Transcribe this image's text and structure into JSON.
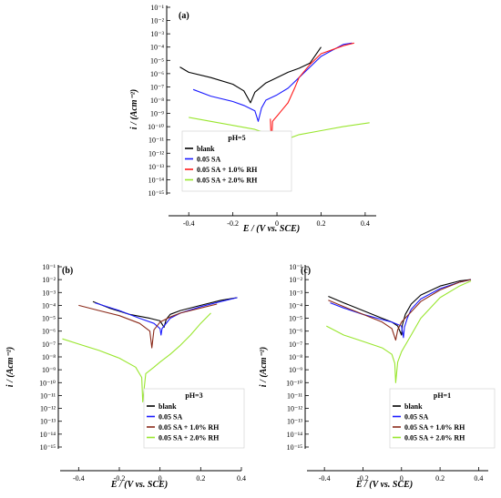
{
  "figure_colors": {
    "blank": "#000000",
    "sa": "#1a1aff",
    "rh1_a": "#ff1a1a",
    "rh1_bc": "#8b2a1a",
    "rh2": "#99e62e"
  },
  "chart_data": [
    {
      "id": "a",
      "type": "line",
      "panel_tag": "(a)",
      "xlabel": "E / (V vs. SCE)",
      "ylabel": "i / (Acm⁻²)",
      "xlim": [
        -0.5,
        0.45
      ],
      "ylim_log10": [
        -15,
        -1
      ],
      "x_ticks": [
        -0.4,
        -0.2,
        0,
        0.2,
        0.4
      ],
      "x_tick_labels": [
        "-0.4",
        "-0.2",
        "0",
        "0.2",
        "0.4"
      ],
      "y_ticks_log10": [
        -1,
        -2,
        -3,
        -4,
        -5,
        -6,
        -7,
        -8,
        -9,
        -10,
        -11,
        -12,
        -13,
        -14,
        -15
      ],
      "y_tick_labels": [
        "10⁻¹",
        "10⁻²",
        "10⁻³",
        "10⁻⁴",
        "10⁻⁵",
        "10⁻⁶",
        "10⁻⁷",
        "10⁻⁸",
        "10⁻⁹",
        "10⁻¹⁰",
        "10⁻¹¹",
        "10⁻¹²",
        "10⁻¹³",
        "10⁻¹⁴",
        "10⁻¹⁵"
      ],
      "legend_title": "pH=5",
      "legend_position": "lower-left",
      "series": [
        {
          "name": "blank",
          "color": "#000000",
          "x": [
            -0.44,
            -0.4,
            -0.3,
            -0.2,
            -0.15,
            -0.12,
            -0.1,
            -0.05,
            0,
            0.05,
            0.1,
            0.15,
            0.2
          ],
          "y_log10": [
            -5.5,
            -5.9,
            -6.3,
            -6.8,
            -7.3,
            -8.2,
            -7.4,
            -6.7,
            -6.3,
            -5.9,
            -5.6,
            -5.2,
            -4.0
          ]
        },
        {
          "name": "0.05 SA",
          "color": "#1a1aff",
          "x": [
            -0.38,
            -0.3,
            -0.2,
            -0.15,
            -0.1,
            -0.085,
            -0.07,
            -0.05,
            0,
            0.05,
            0.1,
            0.2,
            0.3,
            0.34
          ],
          "y_log10": [
            -7.2,
            -7.7,
            -8.1,
            -8.4,
            -8.8,
            -9.6,
            -8.6,
            -8.0,
            -7.6,
            -7.1,
            -6.3,
            -4.7,
            -3.8,
            -3.7
          ]
        },
        {
          "name": "0.05 SA + 1.0% RH",
          "color": "#ff1a1a",
          "x": [
            -0.03,
            -0.025,
            -0.02,
            -0.01,
            0,
            0.02,
            0.05,
            0.08,
            0.1,
            0.15,
            0.2,
            0.3,
            0.35
          ],
          "y_log10": [
            -9.4,
            -11.5,
            -9.6,
            -9.4,
            -9.2,
            -8.8,
            -8.2,
            -7.1,
            -6.3,
            -5.3,
            -4.5,
            -3.9,
            -3.7
          ]
        },
        {
          "name": "0.05 SA + 2.0% RH",
          "color": "#99e62e",
          "x": [
            -0.4,
            -0.3,
            -0.2,
            -0.1,
            -0.03,
            0,
            0.01,
            0.02,
            0.05,
            0.1,
            0.2,
            0.3,
            0.42
          ],
          "y_log10": [
            -9.3,
            -9.6,
            -9.9,
            -10.2,
            -10.6,
            -11.3,
            -13.4,
            -11.2,
            -10.9,
            -10.6,
            -10.3,
            -10.0,
            -9.7
          ]
        }
      ]
    },
    {
      "id": "b",
      "type": "line",
      "panel_tag": "(b)",
      "xlabel": "E / (V vs. SCE)",
      "ylabel": "i / (Acm⁻²)",
      "xlim": [
        -0.5,
        0.4
      ],
      "ylim_log10": [
        -15,
        -1
      ],
      "x_ticks": [
        -0.4,
        -0.2,
        0,
        0.2,
        0.4
      ],
      "x_tick_labels": [
        "-0.4",
        "-0.2",
        "0",
        "0.2",
        "0.4"
      ],
      "y_ticks_log10": [
        -1,
        -2,
        -3,
        -4,
        -5,
        -6,
        -7,
        -8,
        -9,
        -10,
        -11,
        -12,
        -13,
        -14,
        -15
      ],
      "y_tick_labels": [
        "10⁻¹",
        "10⁻²",
        "10⁻³",
        "10⁻⁴",
        "10⁻⁵",
        "10⁻⁶",
        "10⁻⁷",
        "10⁻⁸",
        "10⁻⁹",
        "10⁻¹⁰",
        "10⁻¹¹",
        "10⁻¹²",
        "10⁻¹³",
        "10⁻¹⁴",
        "10⁻¹⁵"
      ],
      "legend_title": "pH=3",
      "legend_position": "lower-right",
      "series": [
        {
          "name": "blank",
          "color": "#000000",
          "x": [
            -0.33,
            -0.25,
            -0.15,
            -0.05,
            0,
            0.02,
            0.03,
            0.05,
            0.1,
            0.2,
            0.3,
            0.38
          ],
          "y_log10": [
            -3.7,
            -4.2,
            -4.7,
            -5.0,
            -5.2,
            -5.7,
            -5.1,
            -4.7,
            -4.4,
            -4.0,
            -3.6,
            -3.4
          ]
        },
        {
          "name": "0.05 SA",
          "color": "#1a1aff",
          "x": [
            -0.32,
            -0.2,
            -0.1,
            -0.03,
            0,
            0.005,
            0.01,
            0.05,
            0.1,
            0.2,
            0.3,
            0.38
          ],
          "y_log10": [
            -3.8,
            -4.4,
            -5.0,
            -5.4,
            -5.8,
            -6.3,
            -5.8,
            -5.0,
            -4.6,
            -4.1,
            -3.7,
            -3.4
          ]
        },
        {
          "name": "0.05 SA + 1.0% RH",
          "color": "#8b2a1a",
          "x": [
            -0.4,
            -0.3,
            -0.2,
            -0.1,
            -0.05,
            -0.04,
            -0.03,
            0,
            0.05,
            0.1,
            0.2,
            0.28
          ],
          "y_log10": [
            -4.0,
            -4.4,
            -4.8,
            -5.4,
            -6.0,
            -7.3,
            -5.9,
            -5.3,
            -4.9,
            -4.6,
            -4.2,
            -3.9
          ]
        },
        {
          "name": "0.05 SA + 2.0% RH",
          "color": "#99e62e",
          "x": [
            -0.48,
            -0.4,
            -0.3,
            -0.2,
            -0.12,
            -0.09,
            -0.085,
            -0.07,
            -0.03,
            0,
            0.05,
            0.1,
            0.15,
            0.2,
            0.25
          ],
          "y_log10": [
            -6.6,
            -7.0,
            -7.5,
            -8.1,
            -8.8,
            -9.6,
            -11.5,
            -9.3,
            -8.8,
            -8.4,
            -7.8,
            -7.1,
            -6.3,
            -5.4,
            -4.6
          ]
        }
      ]
    },
    {
      "id": "c",
      "type": "line",
      "panel_tag": "(c)",
      "xlabel": "E / (V vs. SCE)",
      "ylabel": "i / (Acm⁻²)",
      "xlim": [
        -0.5,
        0.45
      ],
      "ylim_log10": [
        -15,
        -1
      ],
      "x_ticks": [
        -0.4,
        -0.2,
        0,
        0.2,
        0.4
      ],
      "x_tick_labels": [
        "-0.4",
        "-0.2",
        "0",
        "0.2",
        "0.4"
      ],
      "y_ticks_log10": [
        -1,
        -2,
        -3,
        -4,
        -5,
        -6,
        -7,
        -8,
        -9,
        -10,
        -11,
        -12,
        -13,
        -14,
        -15
      ],
      "y_tick_labels": [
        "10⁻¹",
        "10⁻²",
        "10⁻³",
        "10⁻⁴",
        "10⁻⁵",
        "10⁻⁶",
        "10⁻⁷",
        "10⁻⁸",
        "10⁻⁹",
        "10⁻¹⁰",
        "10⁻¹¹",
        "10⁻¹²",
        "10⁻¹³",
        "10⁻¹⁴",
        "10⁻¹⁵"
      ],
      "legend_title": "pH=1",
      "legend_position": "lower-right",
      "series": [
        {
          "name": "blank",
          "color": "#000000",
          "x": [
            -0.38,
            -0.3,
            -0.2,
            -0.1,
            -0.05,
            -0.02,
            0,
            0.005,
            0.02,
            0.05,
            0.1,
            0.2,
            0.3,
            0.36
          ],
          "y_log10": [
            -3.3,
            -3.8,
            -4.4,
            -5.0,
            -5.3,
            -5.6,
            -6.3,
            -5.5,
            -4.7,
            -3.9,
            -3.2,
            -2.5,
            -2.1,
            -2.0
          ]
        },
        {
          "name": "0.05 SA",
          "color": "#1a1aff",
          "x": [
            -0.37,
            -0.3,
            -0.2,
            -0.1,
            -0.05,
            0,
            0.01,
            0.015,
            0.03,
            0.05,
            0.1,
            0.2,
            0.3,
            0.36
          ],
          "y_log10": [
            -3.8,
            -4.2,
            -4.7,
            -5.1,
            -5.3,
            -5.6,
            -6.5,
            -5.7,
            -5.0,
            -4.3,
            -3.5,
            -2.7,
            -2.2,
            -2.0
          ]
        },
        {
          "name": "0.05 SA + 1.0% RH",
          "color": "#8b2a1a",
          "x": [
            -0.38,
            -0.3,
            -0.2,
            -0.1,
            -0.05,
            -0.03,
            -0.02,
            0,
            0.05,
            0.1,
            0.2,
            0.3,
            0.36
          ],
          "y_log10": [
            -3.6,
            -4.1,
            -4.7,
            -5.3,
            -5.8,
            -6.7,
            -5.9,
            -5.3,
            -4.5,
            -3.7,
            -2.8,
            -2.2,
            -2.0
          ]
        },
        {
          "name": "0.05 SA + 2.0% RH",
          "color": "#99e62e",
          "x": [
            -0.39,
            -0.3,
            -0.2,
            -0.1,
            -0.05,
            -0.035,
            -0.03,
            -0.02,
            0,
            0.05,
            0.1,
            0.2,
            0.3,
            0.36
          ],
          "y_log10": [
            -5.6,
            -6.3,
            -6.8,
            -7.3,
            -7.8,
            -8.5,
            -10.0,
            -8.4,
            -7.6,
            -6.3,
            -5.0,
            -3.4,
            -2.5,
            -2.1
          ]
        }
      ]
    }
  ]
}
